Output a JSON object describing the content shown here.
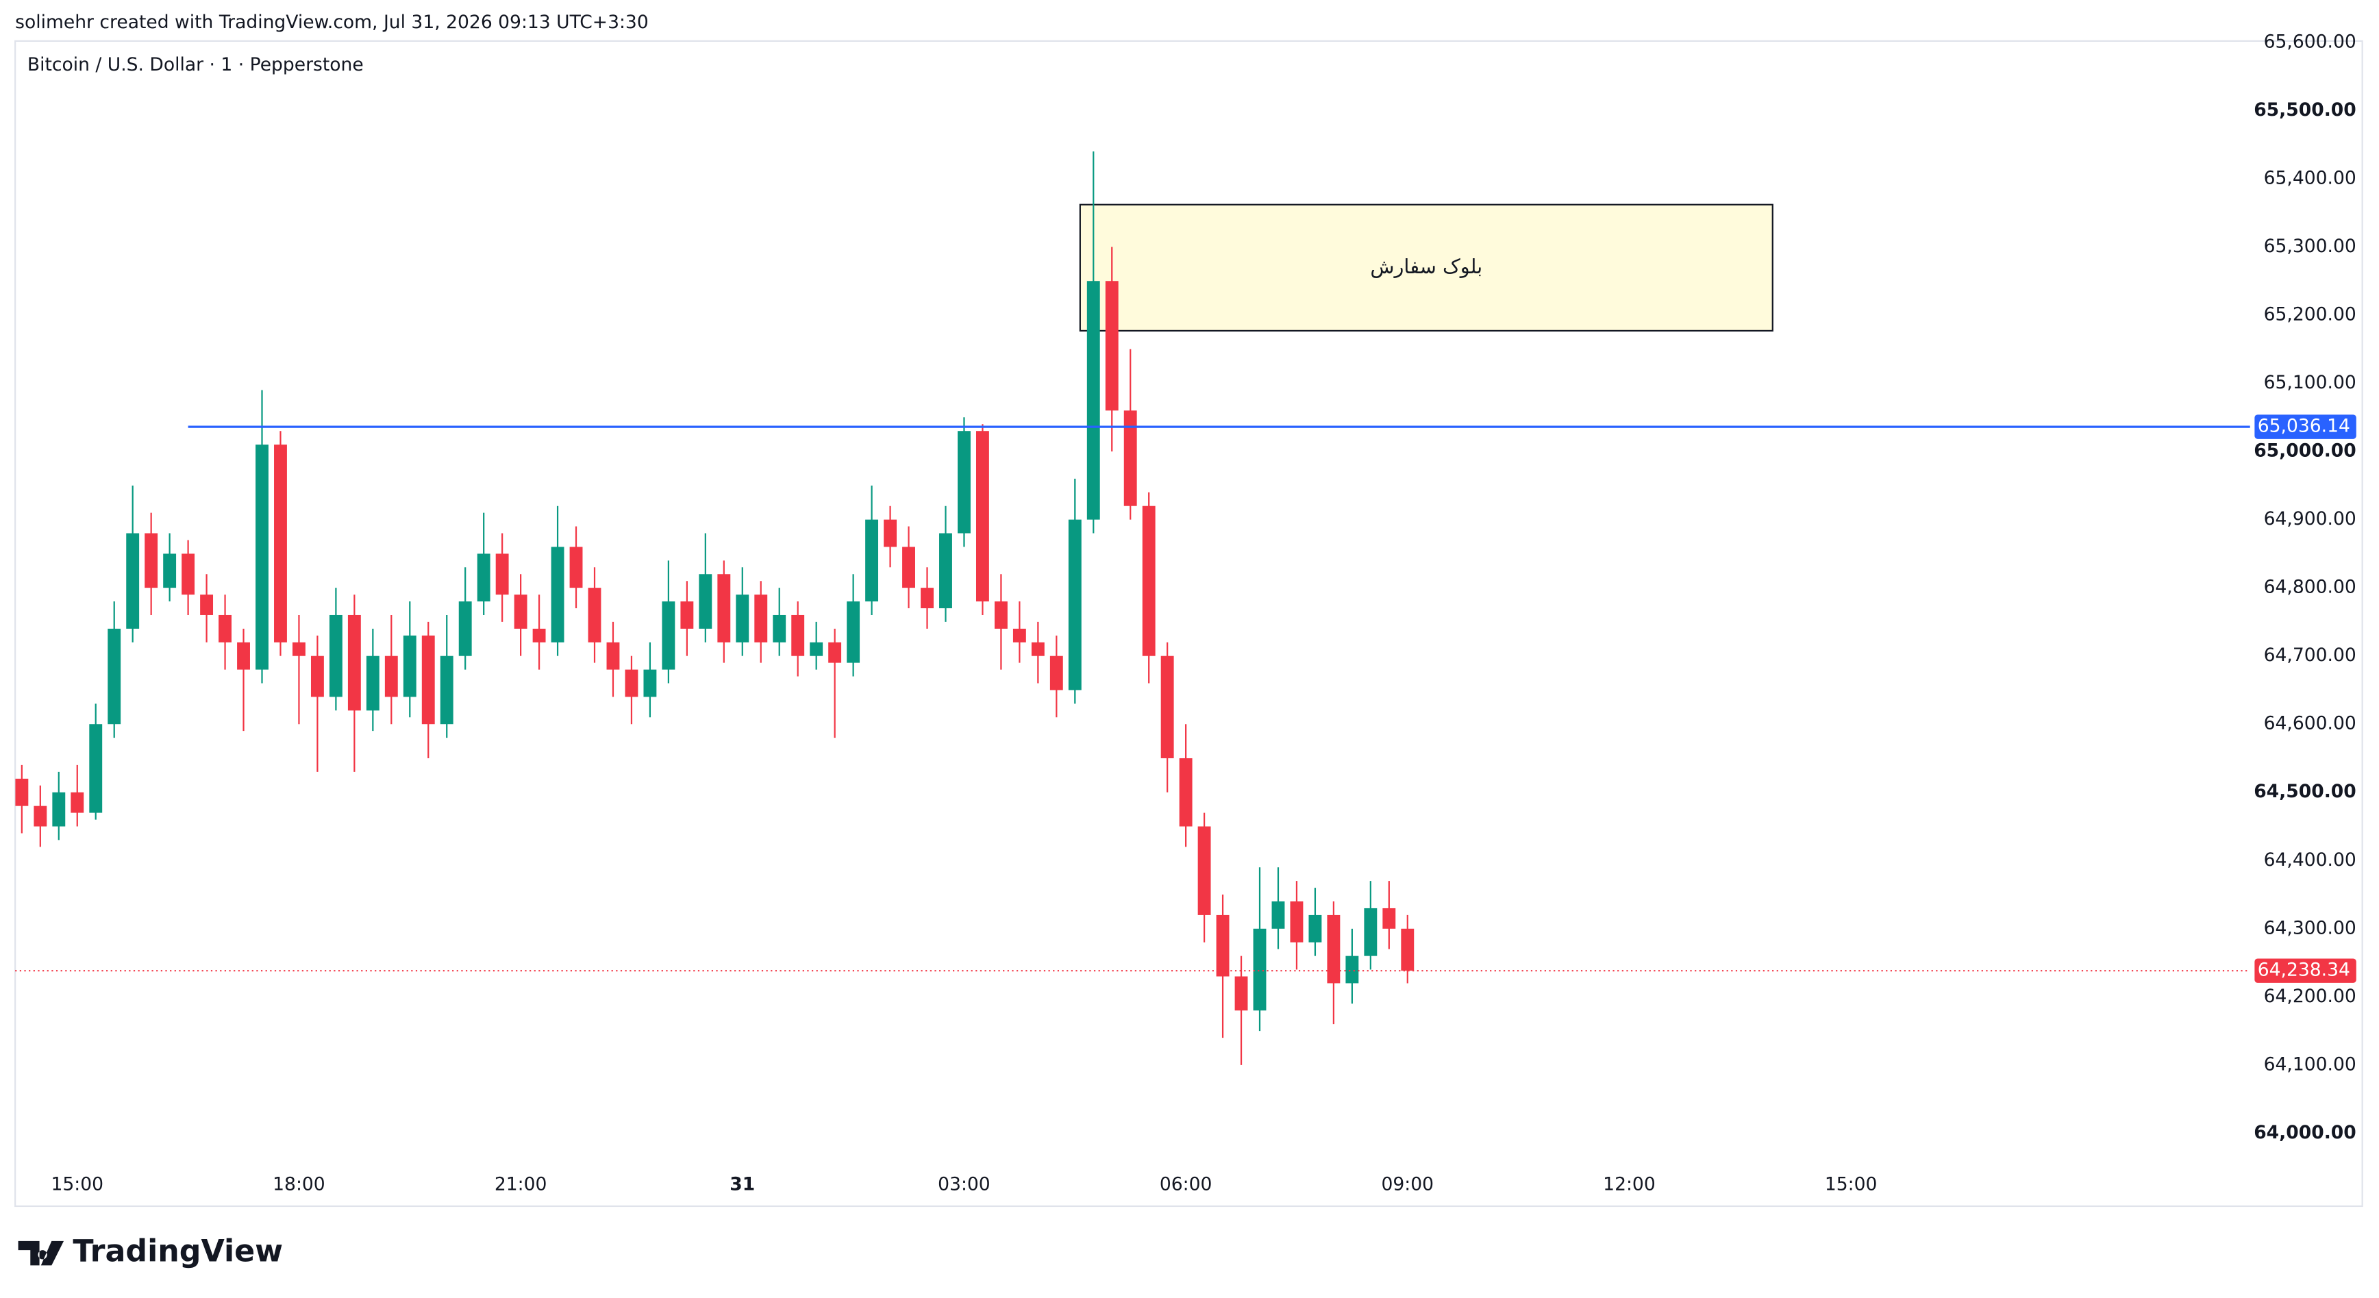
{
  "header": {
    "credit": "solimehr created with TradingView.com, Jul 31, 2026 09:13 UTC+3:30",
    "logo": "TradingView"
  },
  "chart_data": {
    "type": "candlestick",
    "title": "Bitcoin / U.S. Dollar · 1 · Pepperstone",
    "up_color": "#089981",
    "down_color": "#f23645",
    "x": [
      14.25,
      14.5,
      14.75,
      15,
      15.25,
      15.5,
      15.75,
      16,
      16.25,
      16.5,
      16.75,
      17,
      17.25,
      17.5,
      17.75,
      18,
      18.25,
      18.5,
      18.75,
      19,
      19.25,
      19.5,
      19.75,
      20,
      20.25,
      20.5,
      20.75,
      21,
      21.25,
      21.5,
      21.75,
      22,
      22.25,
      22.5,
      22.75,
      23,
      23.25,
      23.5,
      23.75,
      24,
      24.25,
      24.5,
      24.75,
      25,
      25.25,
      25.5,
      25.75,
      26,
      26.25,
      26.5,
      26.75,
      27,
      27.25,
      27.5,
      27.75,
      28,
      28.25,
      28.5,
      28.75,
      29,
      29.25,
      29.5,
      29.75,
      30,
      30.25,
      30.5,
      30.75,
      31,
      31.25,
      31.5,
      31.75,
      32,
      32.25,
      32.5,
      32.75,
      33
    ],
    "open": [
      64520,
      64480,
      64450,
      64500,
      64470,
      64600,
      64740,
      64880,
      64800,
      64850,
      64790,
      64760,
      64720,
      64680,
      65010,
      64720,
      64700,
      64640,
      64760,
      64620,
      64700,
      64640,
      64730,
      64600,
      64700,
      64780,
      64850,
      64790,
      64740,
      64720,
      64860,
      64800,
      64720,
      64680,
      64640,
      64680,
      64780,
      64740,
      64820,
      64720,
      64790,
      64720,
      64760,
      64700,
      64720,
      64690,
      64780,
      64900,
      64860,
      64800,
      64770,
      64880,
      65030,
      64780,
      64740,
      64720,
      64700,
      64650,
      64900,
      65250,
      65060,
      64920,
      64700,
      64550,
      64450,
      64320,
      64230,
      64180,
      64300,
      64340,
      64280,
      64320,
      64220,
      64260,
      64330,
      64300
    ],
    "high": [
      64540,
      64510,
      64530,
      64540,
      64630,
      64780,
      64950,
      64910,
      64880,
      64870,
      64820,
      64790,
      64740,
      65090,
      65030,
      64760,
      64730,
      64800,
      64790,
      64740,
      64760,
      64780,
      64750,
      64760,
      64830,
      64910,
      64880,
      64820,
      64790,
      64920,
      64890,
      64830,
      64750,
      64700,
      64720,
      64840,
      64810,
      64880,
      64840,
      64830,
      64810,
      64800,
      64780,
      64750,
      64740,
      64820,
      64950,
      64920,
      64890,
      64830,
      64920,
      65050,
      65040,
      64820,
      64780,
      64750,
      64730,
      64960,
      65440,
      65300,
      65150,
      64940,
      64720,
      64600,
      64470,
      64350,
      64260,
      64390,
      64390,
      64370,
      64360,
      64340,
      64300,
      64370,
      64370,
      64320
    ],
    "low": [
      64440,
      64420,
      64430,
      64450,
      64460,
      64580,
      64720,
      64760,
      64780,
      64760,
      64720,
      64680,
      64590,
      64660,
      64700,
      64600,
      64530,
      64620,
      64530,
      64590,
      64600,
      64610,
      64550,
      64580,
      64680,
      64760,
      64750,
      64700,
      64680,
      64700,
      64770,
      64690,
      64640,
      64600,
      64610,
      64660,
      64700,
      64720,
      64690,
      64700,
      64690,
      64700,
      64670,
      64680,
      64580,
      64670,
      64760,
      64830,
      64770,
      64740,
      64750,
      64860,
      64760,
      64680,
      64690,
      64660,
      64610,
      64630,
      64880,
      65000,
      64900,
      64660,
      64500,
      64420,
      64280,
      64140,
      64100,
      64150,
      64270,
      64240,
      64260,
      64160,
      64190,
      64240,
      64270,
      64220
    ],
    "close": [
      64480,
      64450,
      64500,
      64470,
      64600,
      64740,
      64880,
      64800,
      64850,
      64790,
      64760,
      64720,
      64680,
      65010,
      64720,
      64700,
      64640,
      64760,
      64620,
      64700,
      64640,
      64730,
      64600,
      64700,
      64780,
      64850,
      64790,
      64740,
      64720,
      64860,
      64800,
      64720,
      64680,
      64640,
      64680,
      64780,
      64740,
      64820,
      64720,
      64790,
      64720,
      64760,
      64700,
      64720,
      64690,
      64780,
      64900,
      64860,
      64800,
      64770,
      64880,
      65030,
      64780,
      64740,
      64720,
      64700,
      64650,
      64900,
      65250,
      65060,
      64920,
      64700,
      64550,
      64450,
      64320,
      64230,
      64180,
      64300,
      64340,
      64280,
      64320,
      64220,
      64260,
      64330,
      64300,
      64238.34
    ],
    "xlim": [
      14.16,
      44.4
    ],
    "xticks": [
      {
        "value": 15,
        "label": "15:00"
      },
      {
        "value": 18,
        "label": "18:00"
      },
      {
        "value": 21,
        "label": "21:00"
      },
      {
        "value": 24,
        "label": "31"
      },
      {
        "value": 27,
        "label": "03:00"
      },
      {
        "value": 30,
        "label": "06:00"
      },
      {
        "value": 33,
        "label": "09:00"
      },
      {
        "value": 36,
        "label": "12:00"
      },
      {
        "value": 39,
        "label": "15:00"
      }
    ],
    "ylim": [
      63893,
      65602
    ],
    "yticks": [
      {
        "value": 64000,
        "label": "64,000.00"
      },
      {
        "value": 64100,
        "label": "64,100.00"
      },
      {
        "value": 64200,
        "label": "64,200.00"
      },
      {
        "value": 64300,
        "label": "64,300.00"
      },
      {
        "value": 64400,
        "label": "64,400.00"
      },
      {
        "value": 64500,
        "label": "64,500.00"
      },
      {
        "value": 64600,
        "label": "64,600.00"
      },
      {
        "value": 64700,
        "label": "64,700.00"
      },
      {
        "value": 64800,
        "label": "64,800.00"
      },
      {
        "value": 64900,
        "label": "64,900.00"
      },
      {
        "value": 65000,
        "label": "65,000.00"
      },
      {
        "value": 65100,
        "label": "65,100.00"
      },
      {
        "value": 65200,
        "label": "65,200.00"
      },
      {
        "value": 65300,
        "label": "65,300.00"
      },
      {
        "value": 65400,
        "label": "65,400.00"
      },
      {
        "value": 65500,
        "label": "65,500.00"
      },
      {
        "value": 65600,
        "label": "65,600.00"
      }
    ],
    "hline": {
      "value": 65036.14,
      "label": "65,036.14",
      "x_start": 16.5,
      "color": "#2962ff"
    },
    "last_price": {
      "value": 64238.34,
      "label": "64,238.34",
      "color": "#f23645"
    },
    "annotations": [
      {
        "text": "بلوک سفارش",
        "x": [
          28.57,
          37.94
        ],
        "y": [
          65177,
          65362
        ]
      }
    ]
  }
}
